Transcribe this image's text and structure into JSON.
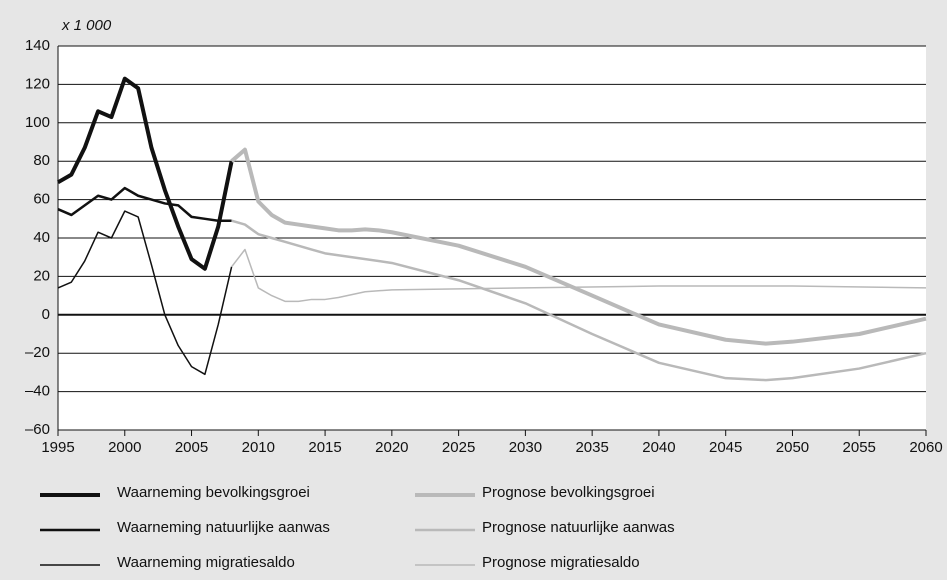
{
  "chart_data": {
    "type": "line",
    "annotation": "x 1 000",
    "xlim": [
      1995,
      2060
    ],
    "xticks": [
      1995,
      2000,
      2005,
      2010,
      2015,
      2020,
      2025,
      2030,
      2035,
      2040,
      2045,
      2050,
      2055,
      2060
    ],
    "ylim": [
      -60,
      140
    ],
    "yticks": [
      {
        "value": -60,
        "label": "–60"
      },
      {
        "value": -40,
        "label": "–40"
      },
      {
        "value": -20,
        "label": "–20"
      },
      0,
      20,
      40,
      60,
      80,
      100,
      120,
      140
    ],
    "grid": true,
    "series": [
      {
        "name": "Waarneming bevolkingsgroei",
        "color": "#111111",
        "width": 4,
        "x": [
          1995,
          1996,
          1997,
          1998,
          1999,
          2000,
          2001,
          2002,
          2003,
          2004,
          2005,
          2006,
          2007,
          2008
        ],
        "values": [
          69,
          73,
          87,
          106,
          103,
          123,
          118,
          87,
          65,
          46,
          29,
          24,
          46,
          80
        ]
      },
      {
        "name": "Prognose bevolkingsgroei",
        "color": "#b9b9b9",
        "width": 4,
        "x": [
          2008,
          2009,
          2010,
          2011,
          2012,
          2013,
          2014,
          2015,
          2016,
          2017,
          2018,
          2019,
          2020,
          2025,
          2030,
          2035,
          2040,
          2045,
          2048,
          2050,
          2055,
          2060
        ],
        "values": [
          80,
          86,
          59,
          52,
          48,
          47,
          46,
          45,
          44,
          44,
          44.5,
          44,
          43,
          36,
          25,
          10,
          -5,
          -13,
          -15,
          -14,
          -10,
          -2
        ]
      },
      {
        "name": "Waarneming natuurlijke aanwas",
        "color": "#111111",
        "width": 2.5,
        "x": [
          1995,
          1996,
          1997,
          1998,
          1999,
          2000,
          2001,
          2002,
          2003,
          2004,
          2005,
          2006,
          2007,
          2008
        ],
        "values": [
          55,
          52,
          57,
          62,
          60,
          66,
          62,
          60,
          58,
          57,
          51,
          50,
          49,
          49
        ]
      },
      {
        "name": "Prognose natuurlijke aanwas",
        "color": "#b9b9b9",
        "width": 2.5,
        "x": [
          2008,
          2009,
          2010,
          2011,
          2012,
          2013,
          2014,
          2015,
          2020,
          2025,
          2030,
          2035,
          2040,
          2045,
          2048,
          2050,
          2055,
          2060
        ],
        "values": [
          49,
          47,
          42,
          40,
          38,
          36,
          34,
          32,
          27,
          18,
          6,
          -10,
          -25,
          -33,
          -34,
          -33,
          -28,
          -20
        ]
      },
      {
        "name": "Waarneming migratiesaldo",
        "color": "#111111",
        "width": 1.5,
        "x": [
          1995,
          1996,
          1997,
          1998,
          1999,
          2000,
          2001,
          2002,
          2003,
          2004,
          2005,
          2006,
          2007,
          2008
        ],
        "values": [
          14,
          17,
          28,
          43,
          40,
          54,
          51,
          26,
          0,
          -16,
          -27,
          -31,
          -5,
          25
        ]
      },
      {
        "name": "Prognose migratiesaldo",
        "color": "#b9b9b9",
        "width": 1.5,
        "x": [
          2008,
          2009,
          2010,
          2011,
          2012,
          2013,
          2014,
          2015,
          2016,
          2018,
          2020,
          2025,
          2030,
          2040,
          2050,
          2060
        ],
        "values": [
          25,
          34,
          14,
          10,
          7,
          7,
          8,
          8,
          9,
          12,
          13,
          13.5,
          14,
          15,
          15,
          14
        ]
      }
    ]
  }
}
